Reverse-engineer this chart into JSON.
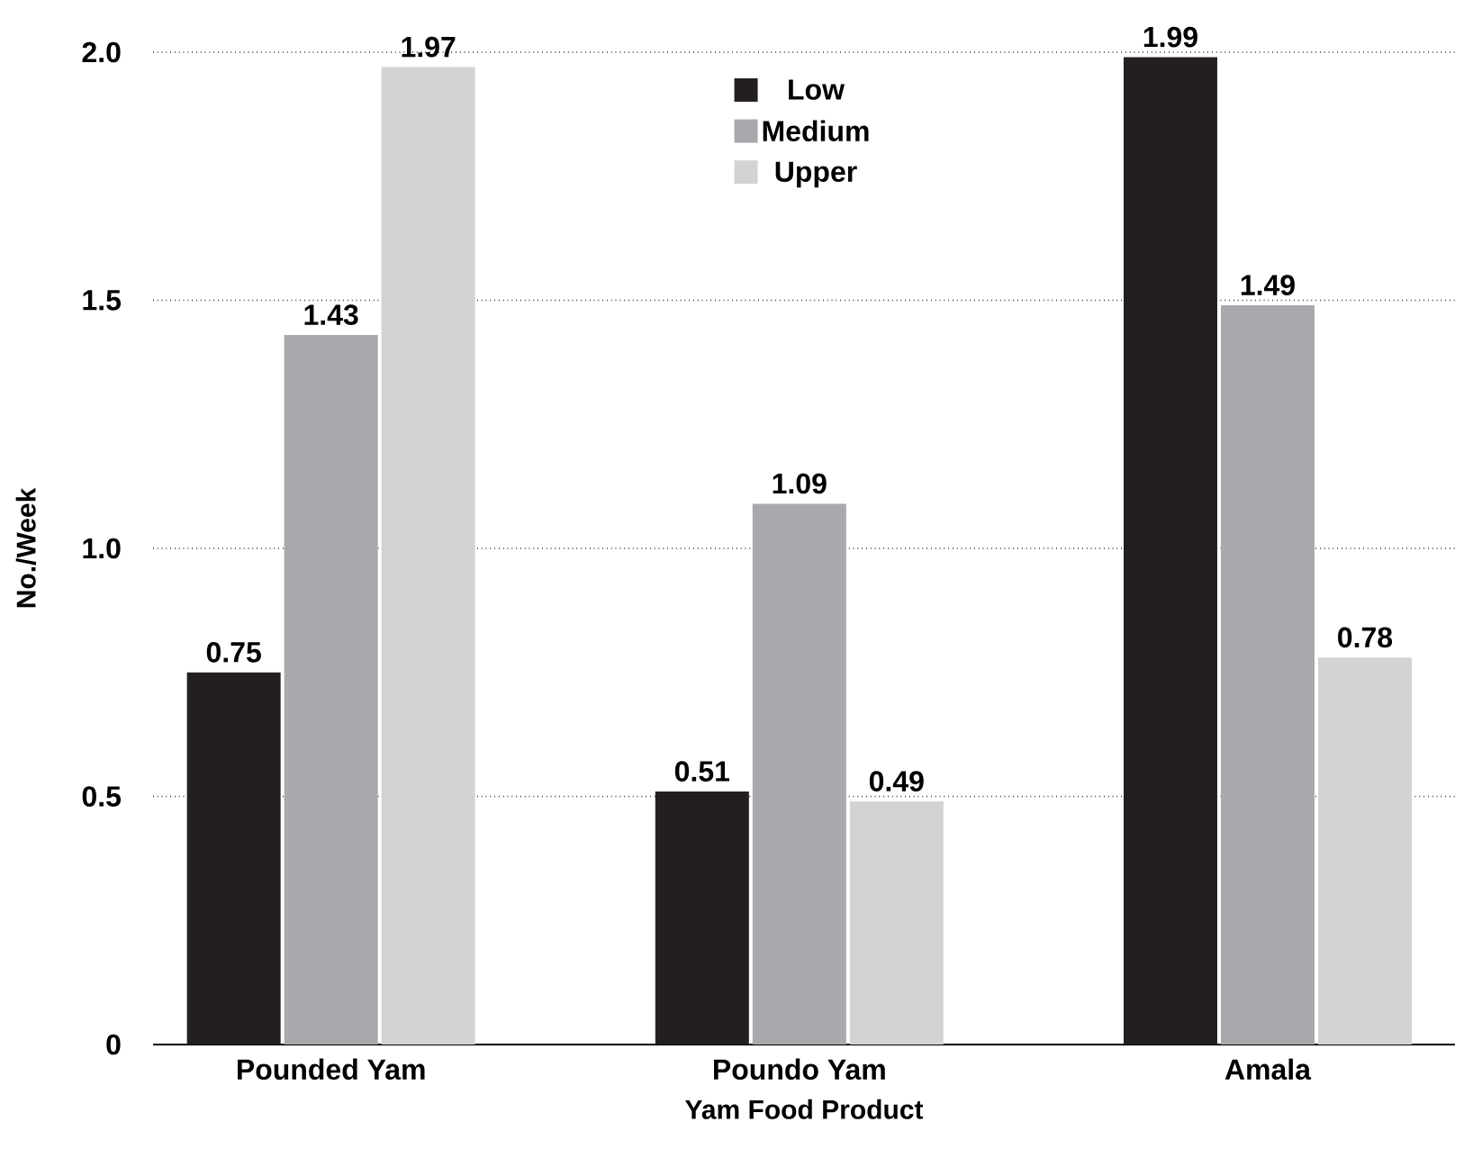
{
  "chart_data": {
    "type": "bar",
    "xlabel": "Yam Food Product",
    "ylabel": "No./Week",
    "categories": [
      "Pounded Yam",
      "Poundo Yam",
      "Amala"
    ],
    "series": [
      {
        "name": "Low",
        "color": "#231f20",
        "values": [
          0.75,
          0.51,
          1.99
        ]
      },
      {
        "name": "Medium",
        "color": "#a7a9ac",
        "values": [
          1.43,
          1.09,
          1.49
        ]
      },
      {
        "name": "Upper",
        "color": "#d1d3d4",
        "values": [
          1.97,
          0.49,
          0.78
        ]
      }
    ],
    "ylim": [
      0,
      2.0
    ],
    "yticks": [
      {
        "value": 0,
        "label": "0"
      },
      {
        "value": 0.5,
        "label": "0.5"
      },
      {
        "value": 1.0,
        "label": "1.0"
      },
      {
        "value": 1.5,
        "label": "1.5"
      },
      {
        "value": 2.0,
        "label": "2.0"
      }
    ],
    "grid": "y",
    "legend": "top",
    "data_labels": true
  }
}
